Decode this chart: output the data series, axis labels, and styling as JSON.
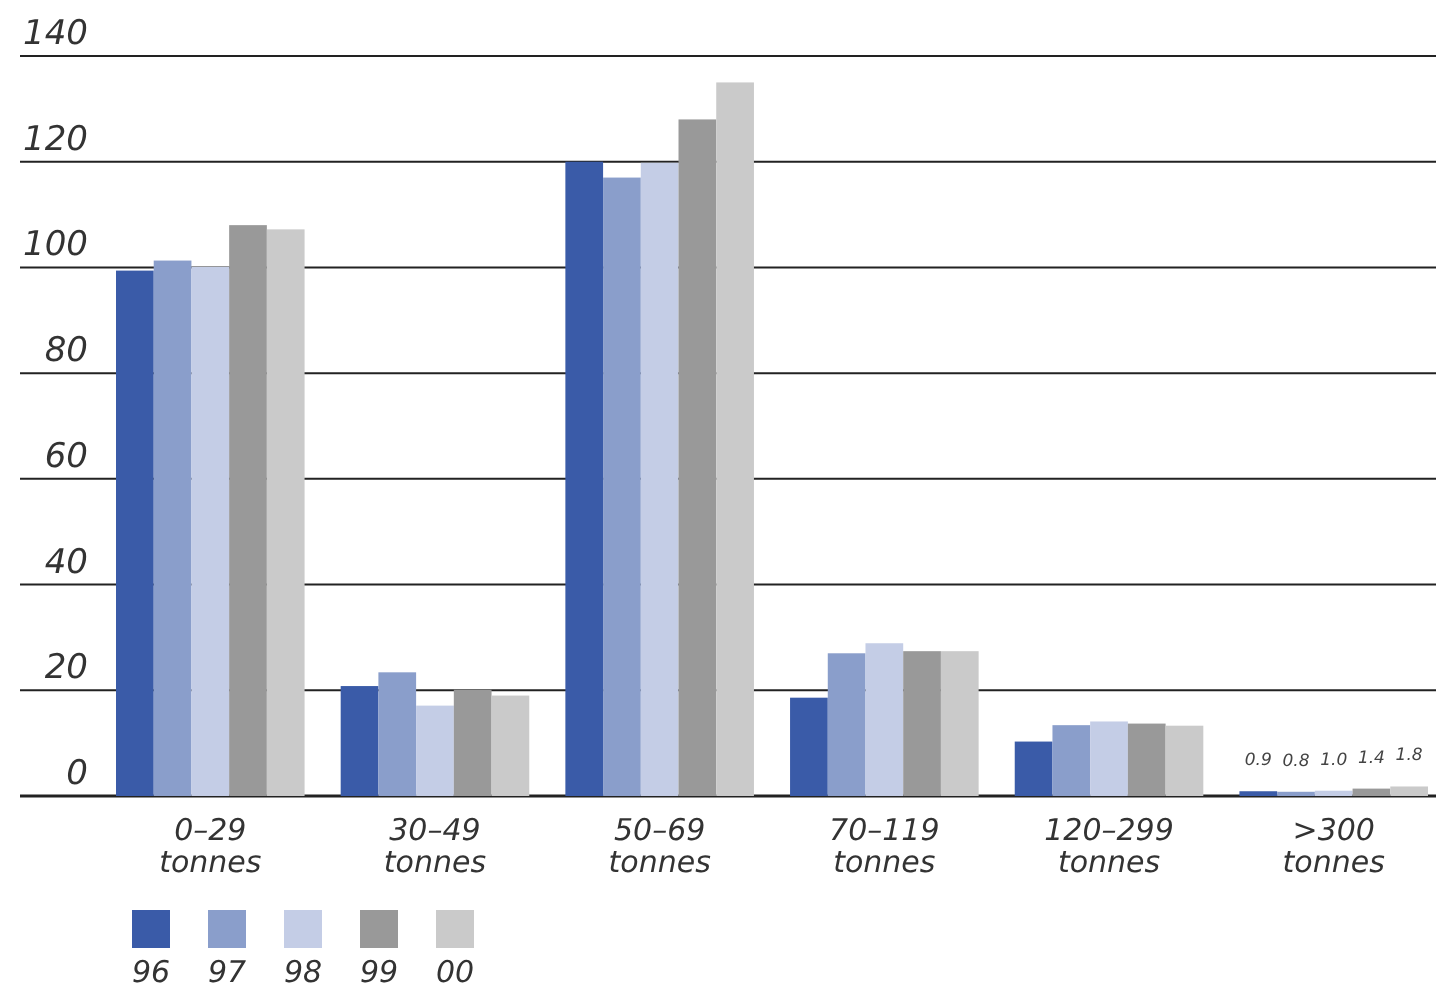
{
  "chart_data": {
    "type": "bar",
    "categories": [
      "0–29 tonnes",
      "30–49 tonnes",
      "50–69 tonnes",
      "70–119 tonnes",
      "120–299 tonnes",
      ">300 tonnes"
    ],
    "series": [
      {
        "name": "96",
        "color": "#3a5ba8",
        "values": [
          99.4,
          20.8,
          120,
          18.6,
          10.3,
          0.9
        ],
        "value_labels": [
          null,
          null,
          null,
          null,
          null,
          "0.9"
        ]
      },
      {
        "name": "97",
        "color": "#8a9ecb",
        "values": [
          101.3,
          23.4,
          117,
          27,
          13.4,
          0.8
        ],
        "value_labels": [
          null,
          null,
          null,
          null,
          null,
          "0.8"
        ]
      },
      {
        "name": "98",
        "color": "#c4cde6",
        "values": [
          100.1,
          17.1,
          119.8,
          28.9,
          14.1,
          1.0
        ],
        "value_labels": [
          null,
          null,
          null,
          null,
          null,
          "1.0"
        ]
      },
      {
        "name": "99",
        "color": "#999999",
        "values": [
          108,
          20.1,
          128,
          27.4,
          13.7,
          1.4
        ],
        "value_labels": [
          null,
          null,
          null,
          null,
          null,
          "1.4"
        ]
      },
      {
        "name": "00",
        "color": "#cacaca",
        "values": [
          107.2,
          19,
          135,
          27.4,
          13.3,
          1.8
        ],
        "value_labels": [
          null,
          null,
          null,
          null,
          null,
          "1.8"
        ]
      }
    ],
    "ylim": [
      0,
      140
    ],
    "yticks": [
      0,
      20,
      40,
      60,
      80,
      100,
      120,
      140
    ],
    "grid": "y",
    "legend": "bottom left"
  }
}
